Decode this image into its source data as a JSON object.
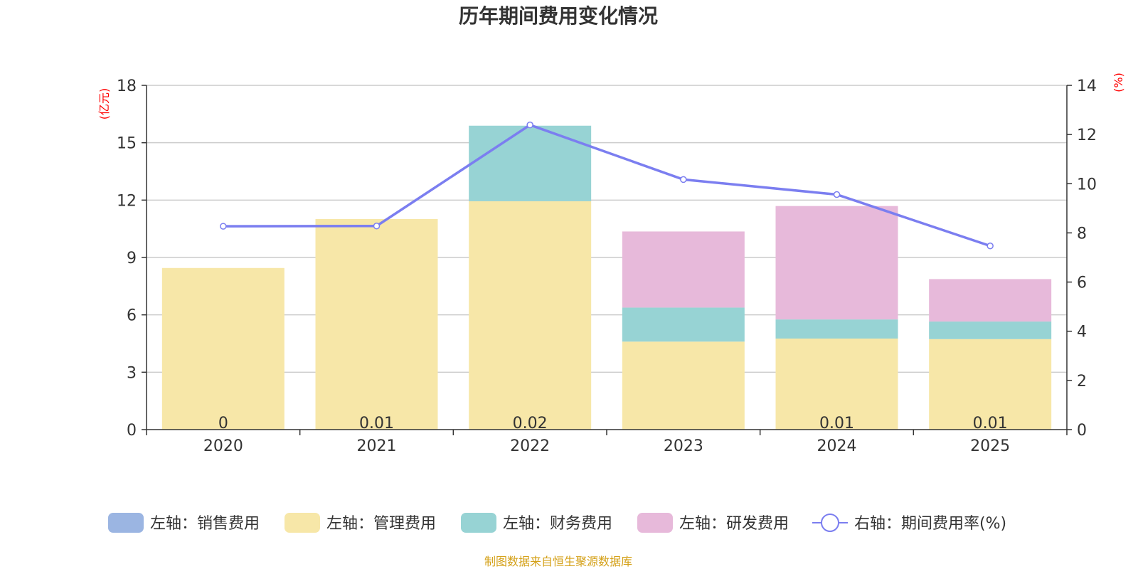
{
  "chart_data": {
    "type": "bar",
    "title": "历年期间费用变化情况",
    "categories": [
      "2020",
      "2021",
      "2022",
      "2023",
      "2024",
      "2025"
    ],
    "left_axis": {
      "unit": "(亿元)",
      "ylim": [
        0,
        18
      ],
      "ticks": [
        0,
        3,
        6,
        9,
        12,
        15,
        18
      ]
    },
    "right_axis": {
      "unit": "(%)",
      "ylim": [
        0,
        14
      ],
      "ticks": [
        0,
        2,
        4,
        6,
        8,
        10,
        12,
        14
      ]
    },
    "series": [
      {
        "name": "左轴：销售费用",
        "axis": "left",
        "kind": "bar",
        "color": "#9bb5e2",
        "values": [
          0,
          0.01,
          0.02,
          0,
          0.01,
          0.01
        ],
        "labels": [
          "0",
          "0.01",
          "0.02",
          "",
          "0.01",
          "0.01"
        ]
      },
      {
        "name": "左轴：管理费用",
        "axis": "left",
        "kind": "bar",
        "color": "#f7e7a8",
        "values": [
          8.45,
          11.0,
          11.92,
          4.6,
          4.75,
          4.72
        ]
      },
      {
        "name": "左轴：财务费用",
        "axis": "left",
        "kind": "bar",
        "color": "#97d3d4",
        "values": [
          0,
          0,
          3.95,
          1.78,
          1.0,
          0.92
        ]
      },
      {
        "name": "左轴：研发费用",
        "axis": "left",
        "kind": "bar",
        "color": "#e7b9da",
        "values": [
          0,
          0,
          0,
          3.98,
          5.93,
          2.22
        ]
      },
      {
        "name": "右轴：期间费用率(%)",
        "axis": "right",
        "kind": "line",
        "color": "#7b7ef0",
        "values": [
          8.27,
          8.28,
          12.39,
          10.17,
          9.56,
          7.47
        ]
      }
    ]
  },
  "source": "制图数据来自恒生聚源数据库"
}
